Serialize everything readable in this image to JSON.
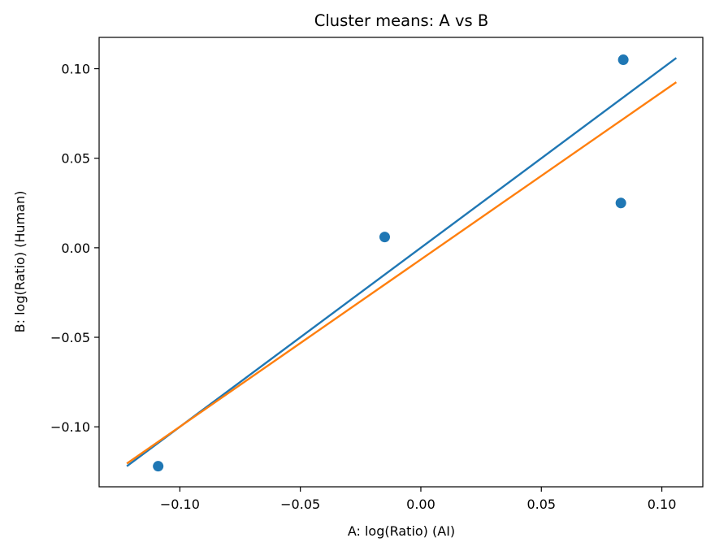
{
  "chart_data": {
    "type": "scatter",
    "title": "Cluster means: A vs B",
    "xlabel": "A: log(Ratio) (AI)",
    "ylabel": "B: log(Ratio) (Human)",
    "xlim": [
      -0.1335,
      0.117
    ],
    "ylim": [
      -0.1335,
      0.1175
    ],
    "xticks": [
      -0.1,
      -0.05,
      0.0,
      0.05,
      0.1
    ],
    "xtick_labels": [
      "−0.10",
      "−0.05",
      "0.00",
      "0.05",
      "0.10"
    ],
    "yticks": [
      -0.1,
      -0.05,
      0.0,
      0.05,
      0.1
    ],
    "ytick_labels": [
      "−0.10",
      "−0.05",
      "0.00",
      "0.05",
      "0.10"
    ],
    "grid": false,
    "scatter": {
      "color": "#1f77b4",
      "points": [
        {
          "x": -0.109,
          "y": -0.122
        },
        {
          "x": -0.015,
          "y": 0.006
        },
        {
          "x": 0.083,
          "y": 0.025
        },
        {
          "x": 0.084,
          "y": 0.105
        }
      ]
    },
    "lines": [
      {
        "color": "#1f77b4",
        "x": [
          -0.122,
          0.106
        ],
        "y": [
          -0.122,
          0.106
        ]
      },
      {
        "color": "#ff7f0e",
        "x": [
          -0.122,
          0.106
        ],
        "y": [
          -0.1205,
          0.0925
        ]
      }
    ]
  }
}
